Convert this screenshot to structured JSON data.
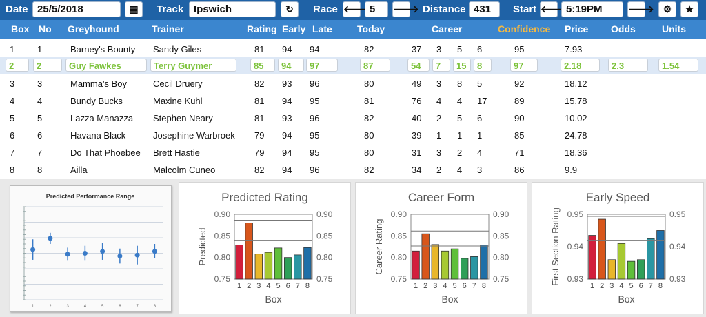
{
  "toolbar": {
    "date_label": "Date",
    "date_value": "25/5/2018",
    "track_label": "Track",
    "track_value": "Ipswich",
    "race_label": "Race",
    "race_value": "5",
    "distance_label": "Distance",
    "distance_value": "431",
    "start_label": "Start",
    "start_value": "5:19PM",
    "prev_icon": "arrow-left-icon",
    "next_icon": "arrow-right-icon",
    "calendar_icon": "calendar-icon",
    "refresh_icon": "refresh-icon",
    "settings_icon": "gear-icon",
    "favorite_icon": "star-icon",
    "glyph_prev": "🡐",
    "glyph_next": "🡒",
    "glyph_cal": "▦",
    "glyph_refresh": "↻",
    "glyph_gear": "⚙",
    "glyph_star": "★"
  },
  "table": {
    "headers": {
      "box": "Box",
      "no": "No",
      "greyhound": "Greyhound",
      "trainer": "Trainer",
      "rating": "Rating",
      "early": "Early",
      "late": "Late",
      "today": "Today",
      "career": "Career",
      "confidence": "Confidence",
      "price": "Price",
      "odds": "Odds",
      "units": "Units"
    },
    "rows": [
      {
        "box": "1",
        "no": "1",
        "greyhound": "Barney's Bounty",
        "trainer": "Sandy Giles",
        "rating": "81",
        "early": "94",
        "late": "94",
        "today": "82",
        "c1": "37",
        "c2": "3",
        "c3": "5",
        "c4": "6",
        "confidence": "95",
        "price": "7.93",
        "odds": "",
        "units": ""
      },
      {
        "box": "2",
        "no": "2",
        "greyhound": "Guy Fawkes",
        "trainer": "Terry Guymer",
        "rating": "85",
        "early": "94",
        "late": "97",
        "today": "87",
        "c1": "54",
        "c2": "7",
        "c3": "15",
        "c4": "8",
        "confidence": "97",
        "price": "2.18",
        "odds": "2.3",
        "units": "1.54"
      },
      {
        "box": "3",
        "no": "3",
        "greyhound": "Mamma's Boy",
        "trainer": "Cecil Druery",
        "rating": "82",
        "early": "93",
        "late": "96",
        "today": "80",
        "c1": "49",
        "c2": "3",
        "c3": "8",
        "c4": "5",
        "confidence": "92",
        "price": "18.12",
        "odds": "",
        "units": ""
      },
      {
        "box": "4",
        "no": "4",
        "greyhound": "Bundy Bucks",
        "trainer": "Maxine Kuhl",
        "rating": "81",
        "early": "94",
        "late": "95",
        "today": "81",
        "c1": "76",
        "c2": "4",
        "c3": "4",
        "c4": "17",
        "confidence": "89",
        "price": "15.78",
        "odds": "",
        "units": ""
      },
      {
        "box": "5",
        "no": "5",
        "greyhound": "Lazza Manazza",
        "trainer": "Stephen Neary",
        "rating": "81",
        "early": "93",
        "late": "96",
        "today": "82",
        "c1": "40",
        "c2": "2",
        "c3": "5",
        "c4": "6",
        "confidence": "90",
        "price": "10.02",
        "odds": "",
        "units": ""
      },
      {
        "box": "6",
        "no": "6",
        "greyhound": "Havana Black",
        "trainer": "Josephine Warbroek",
        "rating": "79",
        "early": "94",
        "late": "95",
        "today": "80",
        "c1": "39",
        "c2": "1",
        "c3": "1",
        "c4": "1",
        "confidence": "85",
        "price": "24.78",
        "odds": "",
        "units": ""
      },
      {
        "box": "7",
        "no": "7",
        "greyhound": "Do That Phoebee",
        "trainer": "Brett Hastie",
        "rating": "79",
        "early": "94",
        "late": "95",
        "today": "80",
        "c1": "31",
        "c2": "3",
        "c3": "2",
        "c4": "4",
        "confidence": "71",
        "price": "18.36",
        "odds": "",
        "units": ""
      },
      {
        "box": "8",
        "no": "8",
        "greyhound": "Ailla",
        "trainer": "Malcolm Cuneo",
        "rating": "82",
        "early": "94",
        "late": "96",
        "today": "82",
        "c1": "34",
        "c2": "2",
        "c3": "4",
        "c4": "3",
        "confidence": "86",
        "price": "9.9",
        "odds": "",
        "units": ""
      }
    ]
  },
  "chart_data": [
    {
      "type": "scatter",
      "title": "Predicted Performance Range",
      "categories": [
        "1",
        "2",
        "3",
        "4",
        "5",
        "6",
        "7",
        "8"
      ],
      "values": [
        0.54,
        0.66,
        0.49,
        0.5,
        0.52,
        0.47,
        0.48,
        0.52
      ],
      "low": [
        0.43,
        0.6,
        0.42,
        0.42,
        0.43,
        0.39,
        0.38,
        0.45
      ],
      "high": [
        0.65,
        0.72,
        0.56,
        0.58,
        0.61,
        0.55,
        0.58,
        0.6
      ],
      "ylim": [
        0,
        1
      ],
      "grid": true
    },
    {
      "type": "bar",
      "title": "Predicted Rating",
      "xlabel": "Box",
      "ylabel": "Predicted",
      "categories": [
        "1",
        "2",
        "3",
        "4",
        "5",
        "6",
        "7",
        "8"
      ],
      "values": [
        0.829,
        0.88,
        0.808,
        0.812,
        0.822,
        0.8,
        0.806,
        0.823
      ],
      "ylim": [
        0.75,
        0.9
      ],
      "yticks": [
        "0.75",
        "0.80",
        "0.85",
        "0.90"
      ]
    },
    {
      "type": "bar",
      "title": "Career Form",
      "xlabel": "Box",
      "ylabel": "Career Rating",
      "categories": [
        "1",
        "2",
        "3",
        "4",
        "5",
        "6",
        "7",
        "8"
      ],
      "values": [
        0.815,
        0.855,
        0.83,
        0.815,
        0.82,
        0.798,
        0.802,
        0.829
      ],
      "ylim": [
        0.75,
        0.9
      ],
      "yticks": [
        "0.75",
        "0.80",
        "0.85",
        "0.90"
      ]
    },
    {
      "type": "bar",
      "title": "Early Speed",
      "xlabel": "Box",
      "ylabel": "First Section Rating",
      "categories": [
        "1",
        "2",
        "3",
        "4",
        "5",
        "6",
        "7",
        "8"
      ],
      "values": [
        0.9435,
        0.9485,
        0.936,
        0.941,
        0.9355,
        0.936,
        0.9425,
        0.945
      ],
      "ylim": [
        0.93,
        0.95
      ],
      "yticks": [
        "0.93",
        "0.94",
        "0.95"
      ]
    }
  ],
  "colors": {
    "header_blue": "#3b86cf",
    "toolbar_blue": "#1f62a6",
    "confidence": "#f5b942",
    "selected_text": "#7cc23a",
    "bars": [
      "#d21f3c",
      "#d8561b",
      "#e8b62a",
      "#a7c932",
      "#5fbf3a",
      "#2f9f58",
      "#2a96a3",
      "#1f6fa8"
    ]
  }
}
